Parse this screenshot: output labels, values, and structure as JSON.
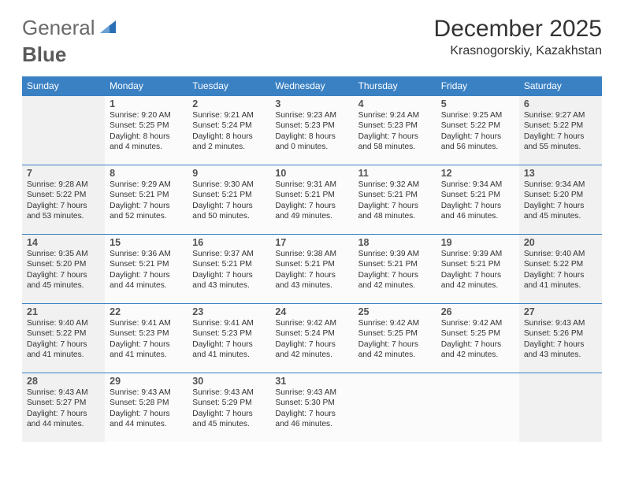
{
  "logo": {
    "text1": "General",
    "text2": "Blue"
  },
  "title": "December 2025",
  "location": "Krasnogorskiy, Kazakhstan",
  "colors": {
    "header_bg": "#3a81c4",
    "header_text": "#ffffff",
    "border": "#3a81c4",
    "weekend_bg": "#f1f1f1",
    "weekday_bg": "#fbfbfb",
    "logo_triangle": "#2a6fb5"
  },
  "day_headers": [
    "Sunday",
    "Monday",
    "Tuesday",
    "Wednesday",
    "Thursday",
    "Friday",
    "Saturday"
  ],
  "weeks": [
    [
      null,
      {
        "n": "1",
        "sr": "9:20 AM",
        "ss": "5:25 PM",
        "dl": "8 hours and 4 minutes."
      },
      {
        "n": "2",
        "sr": "9:21 AM",
        "ss": "5:24 PM",
        "dl": "8 hours and 2 minutes."
      },
      {
        "n": "3",
        "sr": "9:23 AM",
        "ss": "5:23 PM",
        "dl": "8 hours and 0 minutes."
      },
      {
        "n": "4",
        "sr": "9:24 AM",
        "ss": "5:23 PM",
        "dl": "7 hours and 58 minutes."
      },
      {
        "n": "5",
        "sr": "9:25 AM",
        "ss": "5:22 PM",
        "dl": "7 hours and 56 minutes."
      },
      {
        "n": "6",
        "sr": "9:27 AM",
        "ss": "5:22 PM",
        "dl": "7 hours and 55 minutes."
      }
    ],
    [
      {
        "n": "7",
        "sr": "9:28 AM",
        "ss": "5:22 PM",
        "dl": "7 hours and 53 minutes."
      },
      {
        "n": "8",
        "sr": "9:29 AM",
        "ss": "5:21 PM",
        "dl": "7 hours and 52 minutes."
      },
      {
        "n": "9",
        "sr": "9:30 AM",
        "ss": "5:21 PM",
        "dl": "7 hours and 50 minutes."
      },
      {
        "n": "10",
        "sr": "9:31 AM",
        "ss": "5:21 PM",
        "dl": "7 hours and 49 minutes."
      },
      {
        "n": "11",
        "sr": "9:32 AM",
        "ss": "5:21 PM",
        "dl": "7 hours and 48 minutes."
      },
      {
        "n": "12",
        "sr": "9:34 AM",
        "ss": "5:21 PM",
        "dl": "7 hours and 46 minutes."
      },
      {
        "n": "13",
        "sr": "9:34 AM",
        "ss": "5:20 PM",
        "dl": "7 hours and 45 minutes."
      }
    ],
    [
      {
        "n": "14",
        "sr": "9:35 AM",
        "ss": "5:20 PM",
        "dl": "7 hours and 45 minutes."
      },
      {
        "n": "15",
        "sr": "9:36 AM",
        "ss": "5:21 PM",
        "dl": "7 hours and 44 minutes."
      },
      {
        "n": "16",
        "sr": "9:37 AM",
        "ss": "5:21 PM",
        "dl": "7 hours and 43 minutes."
      },
      {
        "n": "17",
        "sr": "9:38 AM",
        "ss": "5:21 PM",
        "dl": "7 hours and 43 minutes."
      },
      {
        "n": "18",
        "sr": "9:39 AM",
        "ss": "5:21 PM",
        "dl": "7 hours and 42 minutes."
      },
      {
        "n": "19",
        "sr": "9:39 AM",
        "ss": "5:21 PM",
        "dl": "7 hours and 42 minutes."
      },
      {
        "n": "20",
        "sr": "9:40 AM",
        "ss": "5:22 PM",
        "dl": "7 hours and 41 minutes."
      }
    ],
    [
      {
        "n": "21",
        "sr": "9:40 AM",
        "ss": "5:22 PM",
        "dl": "7 hours and 41 minutes."
      },
      {
        "n": "22",
        "sr": "9:41 AM",
        "ss": "5:23 PM",
        "dl": "7 hours and 41 minutes."
      },
      {
        "n": "23",
        "sr": "9:41 AM",
        "ss": "5:23 PM",
        "dl": "7 hours and 41 minutes."
      },
      {
        "n": "24",
        "sr": "9:42 AM",
        "ss": "5:24 PM",
        "dl": "7 hours and 42 minutes."
      },
      {
        "n": "25",
        "sr": "9:42 AM",
        "ss": "5:25 PM",
        "dl": "7 hours and 42 minutes."
      },
      {
        "n": "26",
        "sr": "9:42 AM",
        "ss": "5:25 PM",
        "dl": "7 hours and 42 minutes."
      },
      {
        "n": "27",
        "sr": "9:43 AM",
        "ss": "5:26 PM",
        "dl": "7 hours and 43 minutes."
      }
    ],
    [
      {
        "n": "28",
        "sr": "9:43 AM",
        "ss": "5:27 PM",
        "dl": "7 hours and 44 minutes."
      },
      {
        "n": "29",
        "sr": "9:43 AM",
        "ss": "5:28 PM",
        "dl": "7 hours and 44 minutes."
      },
      {
        "n": "30",
        "sr": "9:43 AM",
        "ss": "5:29 PM",
        "dl": "7 hours and 45 minutes."
      },
      {
        "n": "31",
        "sr": "9:43 AM",
        "ss": "5:30 PM",
        "dl": "7 hours and 46 minutes."
      },
      null,
      null,
      null
    ]
  ],
  "labels": {
    "sunrise": "Sunrise:",
    "sunset": "Sunset:",
    "daylight": "Daylight:"
  }
}
